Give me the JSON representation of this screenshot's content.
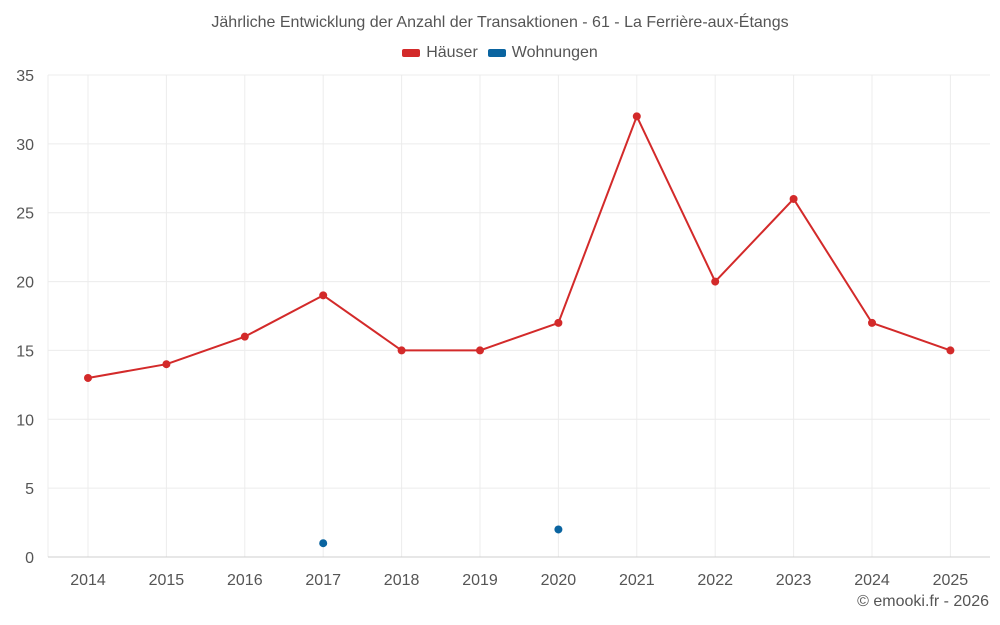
{
  "chart_data": {
    "type": "line",
    "title": "Jährliche Entwicklung der Anzahl der Transaktionen - 61 - La Ferrière-aux-Étangs",
    "categories": [
      "2014",
      "2015",
      "2016",
      "2017",
      "2018",
      "2019",
      "2020",
      "2021",
      "2022",
      "2023",
      "2024",
      "2025"
    ],
    "series": [
      {
        "name": "Häuser",
        "color": "#d32a2a",
        "values": [
          13,
          14,
          16,
          19,
          15,
          15,
          17,
          32,
          20,
          26,
          17,
          15
        ]
      },
      {
        "name": "Wohnungen",
        "color": "#0a64a0",
        "values": [
          null,
          null,
          null,
          1,
          null,
          null,
          2,
          null,
          null,
          null,
          null,
          null
        ]
      }
    ],
    "ylim": [
      0,
      35
    ],
    "yticks": [
      0,
      5,
      10,
      15,
      20,
      25,
      30,
      35
    ],
    "grid": true,
    "legend_position": "top-center",
    "xlabel": "",
    "ylabel": ""
  },
  "credit": "© emooki.fr - 2026"
}
